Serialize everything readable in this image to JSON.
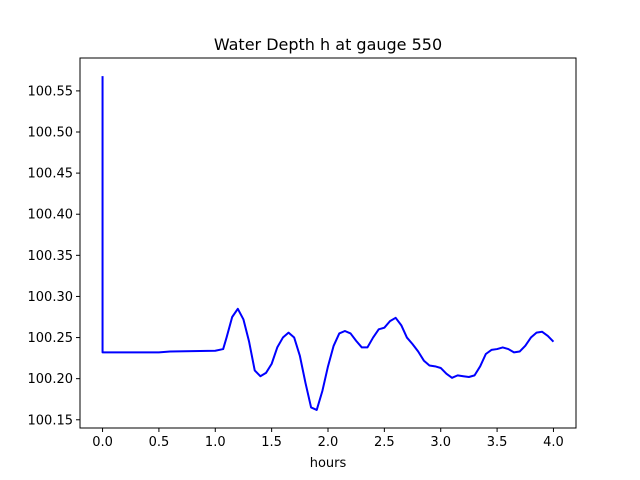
{
  "chart_data": {
    "type": "line",
    "title": "Water Depth h at gauge 550",
    "xlabel": "hours",
    "ylabel": "",
    "xlim": [
      -0.2,
      4.2
    ],
    "ylim": [
      100.14,
      100.59
    ],
    "grid": false,
    "x_ticks": [
      0.0,
      0.5,
      1.0,
      1.5,
      2.0,
      2.5,
      3.0,
      3.5,
      4.0
    ],
    "x_tick_labels": [
      "0.0",
      "0.5",
      "1.0",
      "1.5",
      "2.0",
      "2.5",
      "3.0",
      "3.5",
      "4.0"
    ],
    "y_ticks": [
      100.15,
      100.2,
      100.25,
      100.3,
      100.35,
      100.4,
      100.45,
      100.5,
      100.55
    ],
    "y_tick_labels": [
      "100.15",
      "100.20",
      "100.25",
      "100.30",
      "100.35",
      "100.40",
      "100.45",
      "100.50",
      "100.55"
    ],
    "series": [
      {
        "color": "#0000ff",
        "x": [
          0.0,
          0.0,
          0.01,
          0.5,
          0.6,
          1.0,
          1.07,
          1.1,
          1.15,
          1.2,
          1.25,
          1.3,
          1.35,
          1.4,
          1.45,
          1.5,
          1.55,
          1.6,
          1.65,
          1.7,
          1.75,
          1.8,
          1.85,
          1.9,
          1.95,
          2.0,
          2.05,
          2.1,
          2.15,
          2.2,
          2.25,
          2.3,
          2.35,
          2.4,
          2.45,
          2.5,
          2.55,
          2.6,
          2.65,
          2.7,
          2.75,
          2.8,
          2.85,
          2.9,
          2.95,
          3.0,
          3.05,
          3.1,
          3.15,
          3.2,
          3.25,
          3.3,
          3.35,
          3.4,
          3.45,
          3.5,
          3.55,
          3.6,
          3.65,
          3.7,
          3.75,
          3.8,
          3.85,
          3.9,
          3.95,
          4.0
        ],
        "y": [
          100.568,
          100.232,
          100.232,
          100.232,
          100.233,
          100.234,
          100.236,
          100.25,
          100.275,
          100.285,
          100.272,
          100.245,
          100.21,
          100.203,
          100.207,
          100.218,
          100.238,
          100.25,
          100.256,
          100.25,
          100.228,
          100.195,
          100.165,
          100.162,
          100.185,
          100.215,
          100.24,
          100.255,
          100.258,
          100.255,
          100.246,
          100.238,
          100.238,
          100.25,
          100.26,
          100.262,
          100.27,
          100.274,
          100.265,
          100.25,
          100.242,
          100.233,
          100.222,
          100.216,
          100.215,
          100.213,
          100.206,
          100.201,
          100.204,
          100.203,
          100.202,
          100.204,
          100.215,
          100.23,
          100.235,
          100.236,
          100.238,
          100.236,
          100.232,
          100.233,
          100.24,
          100.25,
          100.256,
          100.257,
          100.252,
          100.245
        ]
      }
    ]
  }
}
